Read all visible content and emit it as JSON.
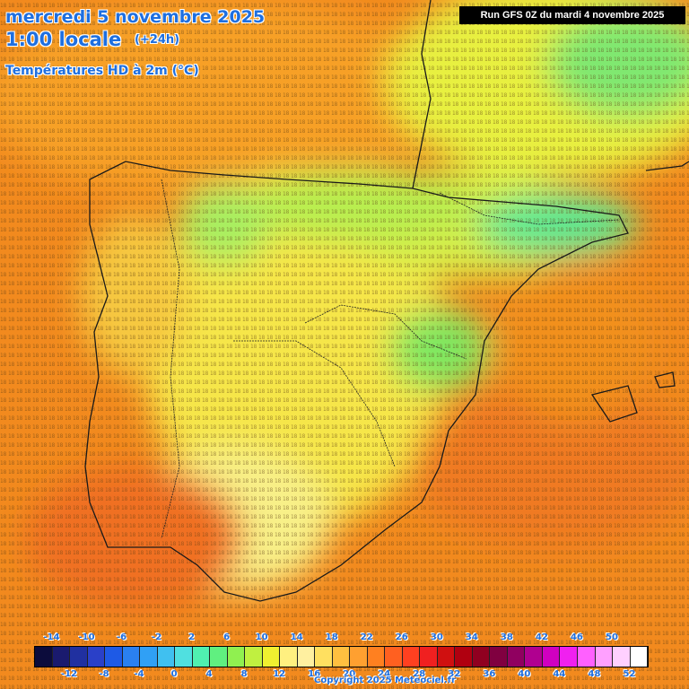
{
  "header": {
    "date": "mercredi 5 novembre 2025",
    "time": "1:00 locale",
    "lead": "(+24h)",
    "variable": "Températures HD à 2m (°C)",
    "run": "Run GFS 0Z du mardi 4 novembre 2025"
  },
  "legend": {
    "top_labels": [
      "-14",
      "-10",
      "-6",
      "-2",
      "2",
      "6",
      "10",
      "14",
      "18",
      "22",
      "26",
      "30",
      "34",
      "38",
      "42",
      "46",
      "50"
    ],
    "bottom_labels": [
      "-12",
      "-8",
      "-4",
      "0",
      "4",
      "8",
      "12",
      "16",
      "20",
      "24",
      "28",
      "32",
      "36",
      "40",
      "44",
      "48",
      "52"
    ],
    "colors": [
      "#0c0c3c",
      "#1a1a6e",
      "#2030a0",
      "#2a40c8",
      "#1e5ae6",
      "#2a80f0",
      "#30a0f5",
      "#40c0f0",
      "#50e0e0",
      "#50f0b0",
      "#60f080",
      "#90f050",
      "#c0f040",
      "#f0f030",
      "#fff080",
      "#fff0a0",
      "#ffe060",
      "#ffc040",
      "#ffa030",
      "#ff8020",
      "#ff6020",
      "#ff4020",
      "#f02020",
      "#d01010",
      "#b00010",
      "#900020",
      "#800040",
      "#900060",
      "#b00090",
      "#d000c0",
      "#f020f0",
      "#ff60ff",
      "#ffa0ff",
      "#ffd0ff",
      "#ffffff"
    ]
  },
  "copyright": "Copyright 2025 Meteociel.fr"
}
